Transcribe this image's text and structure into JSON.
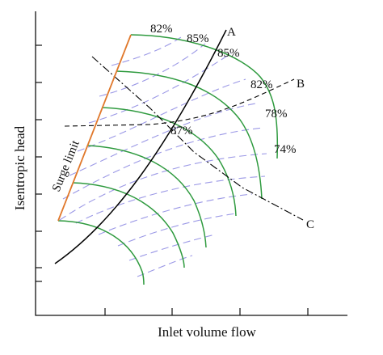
{
  "chart_data": {
    "type": "line",
    "title": "",
    "xlabel": "Inlet volume flow",
    "ylabel": "Isentropic head",
    "x_ticks_count": 4,
    "y_ticks_count": 8,
    "tick_labels": "none",
    "grid": false,
    "colors": {
      "speed_lines": "#2e9a3e",
      "efficiency_lines": "#9b98e6",
      "surge_limit": "#e0782b",
      "operating_lines": "#000000"
    },
    "surge_limit_label": "Surge limit",
    "operating_lines": [
      {
        "name": "A",
        "style": "solid"
      },
      {
        "name": "B",
        "style": "dashed"
      },
      {
        "name": "C",
        "style": "dash-dot"
      }
    ],
    "efficiency_labels": [
      "82%",
      "85%",
      "85%",
      "82%",
      "78%",
      "87%",
      "74%"
    ]
  }
}
